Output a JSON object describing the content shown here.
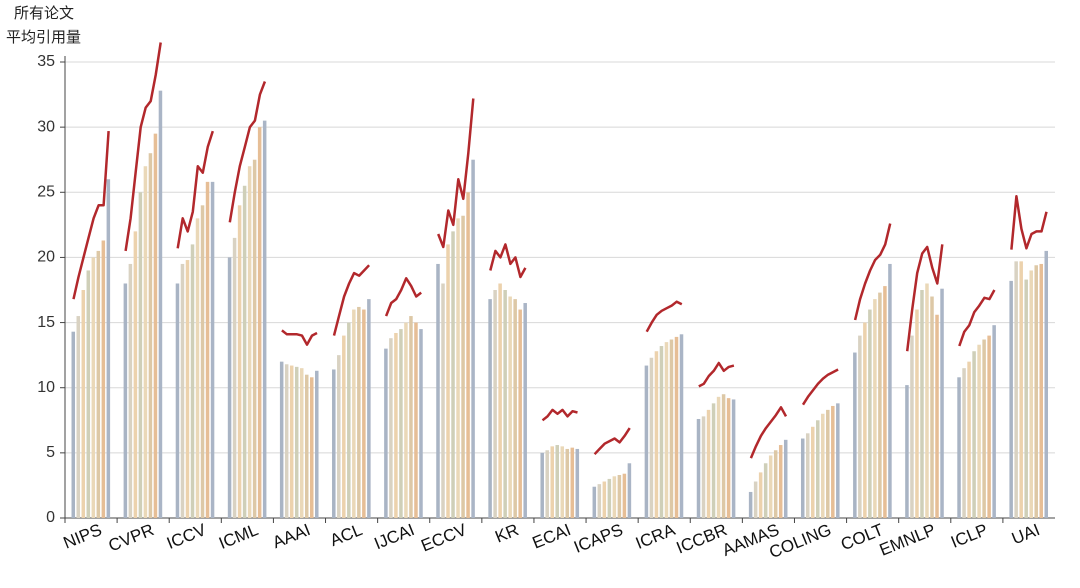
{
  "chart_data": {
    "type": "bar",
    "y_label": [
      "所有论文",
      "平均引用量"
    ],
    "ylim": [
      0,
      35
    ],
    "yticks": [
      0,
      5,
      10,
      15,
      20,
      25,
      30,
      35
    ],
    "grid": true,
    "bar_colors": [
      "#a9b4c4",
      "#d9d2c2",
      "#ecd2ad",
      "#cfcfb8",
      "#ead8b8",
      "#ddc8a6",
      "#e6be96",
      "#aab5c6"
    ],
    "line_color": "#b2282c",
    "categories": [
      "NIPS",
      "CVPR",
      "ICCV",
      "ICML",
      "AAAI",
      "ACL",
      "IJCAI",
      "ECCV",
      "KR",
      "ECAI",
      "ICAPS",
      "ICRA",
      "ICCBR",
      "AAMAS",
      "COLING",
      "COLT",
      "EMNLP",
      "ICLP",
      "UAI"
    ],
    "groups": [
      {
        "bars": [
          14.3,
          15.5,
          17.5,
          19,
          20,
          20.5,
          21.3,
          26
        ],
        "line": [
          16.8,
          18.5,
          20,
          21.5,
          23,
          24,
          24,
          29.7
        ]
      },
      {
        "bars": [
          18,
          19.5,
          22,
          25,
          27,
          28,
          29.5,
          32.8
        ],
        "line": [
          20.5,
          23,
          26.5,
          30,
          31.5,
          32,
          34,
          36.5
        ]
      },
      {
        "bars": [
          18,
          19.5,
          19.8,
          21,
          23,
          24,
          25.8,
          25.8
        ],
        "line": [
          20.7,
          23,
          22,
          23.5,
          27,
          26.5,
          28.5,
          29.7
        ]
      },
      {
        "bars": [
          20,
          21.5,
          24,
          25.5,
          27,
          27.5,
          30,
          30.5
        ],
        "line": [
          22.7,
          25,
          27,
          28.5,
          30,
          30.5,
          32.5,
          33.5
        ]
      },
      {
        "bars": [
          12,
          11.8,
          11.7,
          11.6,
          11.5,
          11,
          10.8,
          11.3
        ],
        "line": [
          14.4,
          14.1,
          14.1,
          14.1,
          14,
          13.3,
          14,
          14.2
        ]
      },
      {
        "bars": [
          11.4,
          12.5,
          14,
          15,
          16,
          16.2,
          16,
          16.8
        ],
        "line": [
          14,
          15.5,
          17,
          18,
          18.8,
          18.6,
          19,
          19.4
        ]
      },
      {
        "bars": [
          13,
          13.8,
          14.2,
          14.5,
          15,
          15.5,
          15,
          14.5
        ],
        "line": [
          15.5,
          16.5,
          16.8,
          17.5,
          18.4,
          17.8,
          17,
          17.3
        ]
      },
      {
        "bars": [
          19.5,
          18,
          21,
          22,
          23,
          23.2,
          25,
          27.5
        ],
        "line": [
          21.8,
          20.8,
          23.6,
          22.5,
          26,
          24.5,
          28,
          32.2
        ]
      },
      {
        "bars": [
          16.8,
          17.5,
          18,
          17.5,
          17,
          16.8,
          16,
          16.5
        ],
        "line": [
          19,
          20.5,
          20,
          21,
          19.5,
          20,
          18.5,
          19.2
        ]
      },
      {
        "bars": [
          5,
          5.2,
          5.5,
          5.6,
          5.5,
          5.3,
          5.4,
          5.3
        ],
        "line": [
          7.5,
          7.8,
          8.3,
          8,
          8.3,
          7.8,
          8.2,
          8.1
        ]
      },
      {
        "bars": [
          2.4,
          2.6,
          2.8,
          3,
          3.2,
          3.3,
          3.4,
          4.2
        ],
        "line": [
          4.9,
          5.3,
          5.7,
          5.9,
          6.1,
          5.8,
          6.3,
          6.9
        ]
      },
      {
        "bars": [
          11.7,
          12.3,
          12.8,
          13.2,
          13.5,
          13.7,
          13.9,
          14.1
        ],
        "line": [
          14.3,
          15,
          15.6,
          15.9,
          16.1,
          16.3,
          16.6,
          16.4
        ]
      },
      {
        "bars": [
          7.6,
          7.8,
          8.3,
          8.8,
          9.3,
          9.5,
          9.2,
          9.1
        ],
        "line": [
          10.1,
          10.3,
          10.9,
          11.3,
          11.9,
          11.3,
          11.6,
          11.7
        ]
      },
      {
        "bars": [
          2,
          2.8,
          3.5,
          4.2,
          4.8,
          5.2,
          5.6,
          6
        ],
        "line": [
          4.6,
          5.5,
          6.3,
          6.9,
          7.4,
          7.9,
          8.5,
          7.8
        ]
      },
      {
        "bars": [
          6.1,
          6.5,
          7,
          7.5,
          8,
          8.3,
          8.6,
          8.8
        ],
        "line": [
          8.7,
          9.3,
          9.8,
          10.3,
          10.7,
          11,
          11.2,
          11.4
        ]
      },
      {
        "bars": [
          12.7,
          14,
          15,
          16,
          16.8,
          17.3,
          17.8,
          19.5
        ],
        "line": [
          15.2,
          16.8,
          18,
          19,
          19.8,
          20.2,
          21,
          22.6
        ]
      },
      {
        "bars": [
          10.2,
          14,
          16,
          17.5,
          18,
          17,
          15.6,
          17.6
        ],
        "line": [
          12.8,
          16,
          18.8,
          20.3,
          20.8,
          19.2,
          18,
          21
        ]
      },
      {
        "bars": [
          10.8,
          11.5,
          12,
          12.8,
          13.3,
          13.7,
          14,
          14.8
        ],
        "line": [
          13.2,
          14.3,
          14.8,
          15.8,
          16.3,
          16.9,
          16.8,
          17.5
        ]
      },
      {
        "bars": [
          18.2,
          19.7,
          19.7,
          18.3,
          19,
          19.4,
          19.5,
          20.5
        ],
        "line": [
          20.6,
          24.7,
          22.2,
          20.7,
          21.8,
          22,
          22,
          23.5
        ]
      }
    ]
  }
}
